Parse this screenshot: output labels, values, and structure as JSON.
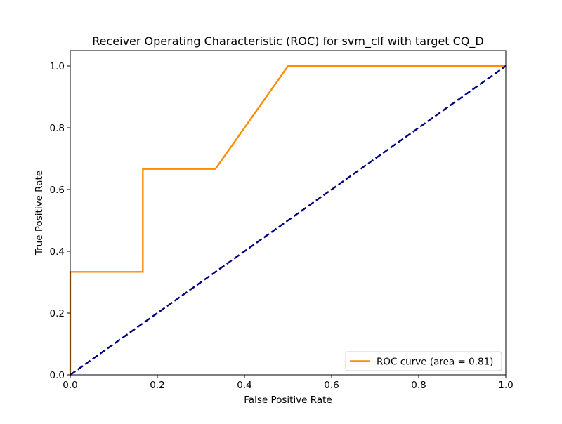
{
  "chart_data": {
    "type": "line",
    "title": "Receiver Operating Characteristic (ROC) for svm_clf with target CQ_D",
    "xlabel": "False Positive Rate",
    "ylabel": "True Positive Rate",
    "xlim": [
      0.0,
      1.0
    ],
    "ylim": [
      0.0,
      1.05
    ],
    "xticks": [
      "0.0",
      "0.2",
      "0.4",
      "0.6",
      "0.8",
      "1.0"
    ],
    "yticks": [
      "0.0",
      "0.2",
      "0.4",
      "0.6",
      "0.8",
      "1.0"
    ],
    "grid": false,
    "legend_position": "lower-right",
    "series": [
      {
        "name": "ROC curve (area = 0.81)",
        "color": "#ff8c00",
        "style": "solid",
        "x": [
          0.0,
          0.0,
          0.0,
          0.1667,
          0.1667,
          0.3333,
          0.5,
          1.0
        ],
        "y": [
          0.0,
          0.0,
          0.3333,
          0.3333,
          0.6667,
          0.6667,
          1.0,
          1.0
        ]
      },
      {
        "color": "#000080",
        "style": "dashed",
        "x": [
          0.0,
          1.0
        ],
        "y": [
          0.0,
          1.0
        ]
      }
    ]
  }
}
